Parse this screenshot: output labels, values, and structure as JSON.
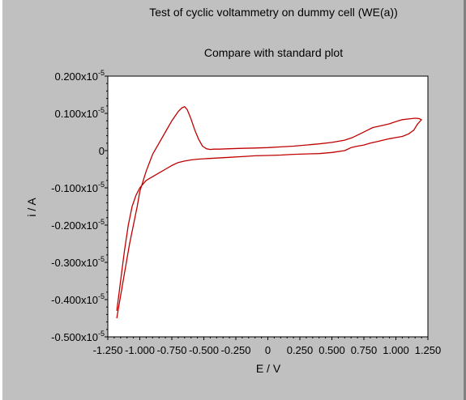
{
  "chart_data": {
    "type": "line",
    "title": "Test of cyclic voltammetry on dummy cell (WE(a))",
    "subtitle": "Compare with standard plot",
    "xlabel": "E / V",
    "ylabel": "i / A",
    "xlim": [
      -1.25,
      1.25
    ],
    "ylim": [
      -0.5,
      0.2
    ],
    "y_unit_exponent": "-5",
    "grid": false,
    "x_ticks": [
      -1.25,
      -1.0,
      -0.75,
      -0.5,
      -0.25,
      0,
      0.25,
      0.5,
      0.75,
      1.0,
      1.25
    ],
    "x_tick_labels": [
      "-1.250",
      "-1.000",
      "-0.750",
      "-0.500",
      "-0.250",
      "0",
      "0.250",
      "0.500",
      "0.750",
      "1.000",
      "1.250"
    ],
    "y_ticks": [
      0.2,
      0.1,
      0,
      -0.1,
      -0.2,
      -0.3,
      -0.4,
      -0.5
    ],
    "y_tick_labels": [
      {
        "mantissa": "0.200x10",
        "exp": "-5"
      },
      {
        "mantissa": "0.100x10",
        "exp": "-5"
      },
      {
        "mantissa": "0",
        "exp": ""
      },
      {
        "mantissa": "-0.100x10",
        "exp": "-5"
      },
      {
        "mantissa": "-0.200x10",
        "exp": "-5"
      },
      {
        "mantissa": "-0.300x10",
        "exp": "-5"
      },
      {
        "mantissa": "-0.400x10",
        "exp": "-5"
      },
      {
        "mantissa": "-0.500x10",
        "exp": "-5"
      }
    ],
    "series": [
      {
        "color": "#c00000",
        "x": [
          -1.18,
          -1.16,
          -1.14,
          -1.12,
          -1.1,
          -1.08,
          -1.05,
          -1.02,
          -1.0,
          -0.95,
          -0.9,
          -0.85,
          -0.8,
          -0.75,
          -0.7,
          -0.67,
          -0.65,
          -0.63,
          -0.6,
          -0.57,
          -0.54,
          -0.51,
          -0.48,
          -0.45,
          -0.42,
          -0.38,
          -0.3,
          -0.2,
          -0.1,
          0.0,
          0.1,
          0.2,
          0.3,
          0.4,
          0.5,
          0.6,
          0.66,
          0.72,
          0.78,
          0.82,
          0.86,
          0.9,
          0.95,
          1.0,
          1.05,
          1.1,
          1.15,
          1.18,
          1.2,
          1.17,
          1.14,
          1.1,
          1.05,
          1.0,
          0.95,
          0.9,
          0.85,
          0.8,
          0.75,
          0.7,
          0.65,
          0.6,
          0.5,
          0.4,
          0.3,
          0.2,
          0.1,
          0.0,
          -0.1,
          -0.2,
          -0.3,
          -0.4,
          -0.5,
          -0.55,
          -0.6,
          -0.65,
          -0.7,
          -0.75,
          -0.8,
          -0.85,
          -0.9,
          -0.95,
          -1.0,
          -1.03,
          -1.06,
          -1.09,
          -1.12,
          -1.15,
          -1.18
        ],
        "y": [
          -0.45,
          -0.41,
          -0.37,
          -0.33,
          -0.29,
          -0.25,
          -0.2,
          -0.15,
          -0.11,
          -0.055,
          -0.01,
          0.02,
          0.05,
          0.08,
          0.105,
          0.115,
          0.118,
          0.11,
          0.085,
          0.055,
          0.03,
          0.012,
          0.005,
          0.003,
          0.004,
          0.004,
          0.005,
          0.006,
          0.007,
          0.008,
          0.01,
          0.012,
          0.015,
          0.018,
          0.022,
          0.028,
          0.035,
          0.045,
          0.055,
          0.062,
          0.065,
          0.068,
          0.072,
          0.078,
          0.083,
          0.085,
          0.087,
          0.086,
          0.083,
          0.072,
          0.055,
          0.045,
          0.038,
          0.035,
          0.032,
          0.028,
          0.024,
          0.02,
          0.015,
          0.012,
          0.008,
          0.0,
          -0.005,
          -0.008,
          -0.009,
          -0.01,
          -0.012,
          -0.013,
          -0.014,
          -0.016,
          -0.018,
          -0.02,
          -0.022,
          -0.023,
          -0.025,
          -0.028,
          -0.032,
          -0.04,
          -0.05,
          -0.06,
          -0.07,
          -0.08,
          -0.1,
          -0.12,
          -0.15,
          -0.2,
          -0.27,
          -0.35,
          -0.43
        ]
      }
    ]
  }
}
